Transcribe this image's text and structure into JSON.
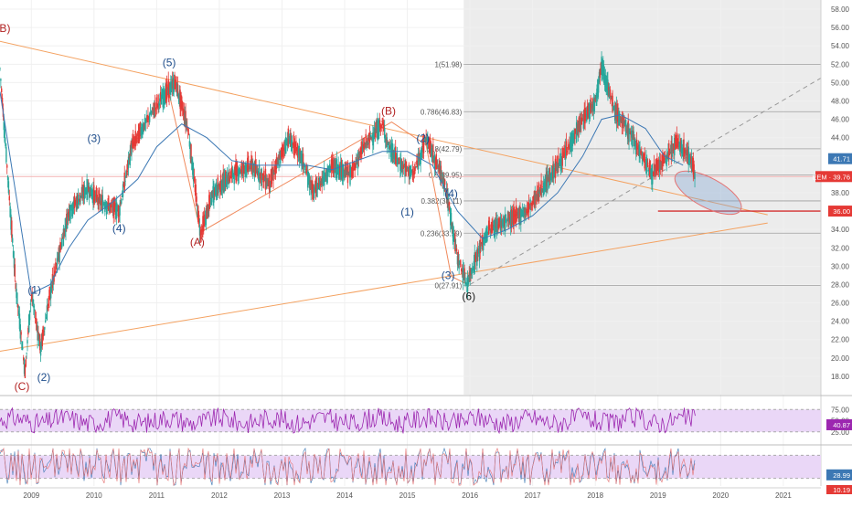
{
  "chart_data": [
    {
      "type": "line",
      "series": [
        {
          "name": "",
          "kind": "candles",
          "x": [
            2008.5,
            2008.75,
            2008.9,
            2009.0,
            2009.15,
            2009.3,
            2009.6,
            2009.9,
            2010.1,
            2010.4,
            2010.6,
            2010.9,
            2011.1,
            2011.3,
            2011.5,
            2011.7,
            2011.9,
            2012.2,
            2012.5,
            2012.8,
            2013.1,
            2013.3,
            2013.5,
            2013.8,
            2014.1,
            2014.3,
            2014.6,
            2014.7,
            2014.9,
            2015.1,
            2015.3,
            2015.6,
            2015.8,
            2015.95,
            2016.1,
            2016.3,
            2016.6,
            2016.9,
            2017.2,
            2017.5,
            2017.8,
            2018.0,
            2018.1,
            2018.3,
            2018.6,
            2018.9,
            2019.1,
            2019.3,
            2019.5,
            2019.6
          ],
          "y": [
            51.5,
            28,
            18.5,
            27,
            21,
            27,
            36,
            38.5,
            37,
            36,
            43,
            46.5,
            48.5,
            50,
            45,
            33.5,
            38,
            40,
            41,
            39,
            44,
            42,
            38,
            41,
            40,
            43,
            45.5,
            43,
            41,
            40,
            44,
            39,
            31,
            28,
            31,
            34,
            35,
            36,
            39,
            42,
            46,
            48,
            52,
            47,
            44,
            40,
            41.5,
            43.5,
            42,
            39.8
          ]
        },
        {
          "name": "",
          "kind": "moving-average",
          "x": [
            2008.5,
            2008.75,
            2009.0,
            2009.3,
            2009.6,
            2009.9,
            2010.3,
            2010.7,
            2011.0,
            2011.4,
            2011.8,
            2012.2,
            2012.6,
            2013.0,
            2013.4,
            2013.8,
            2014.2,
            2014.6,
            2015.0,
            2015.4,
            2015.8,
            2016.2,
            2016.6,
            2017.0,
            2017.4,
            2017.8,
            2018.1,
            2018.4,
            2018.8,
            2019.1,
            2019.4
          ],
          "y": [
            49,
            38,
            27,
            28,
            32,
            35,
            37,
            39.5,
            43,
            45.5,
            44,
            41.5,
            41,
            41,
            41,
            40.5,
            41.5,
            42.5,
            42.5,
            41,
            36,
            33,
            34,
            35.5,
            38,
            42,
            46,
            46.5,
            45,
            42,
            41
          ]
        }
      ],
      "ylim": [
        16,
        59
      ],
      "xlim": [
        2008.5,
        2021.6
      ],
      "y_ticks": [
        "58.00",
        "56.00",
        "54.00",
        "52.00",
        "50.00",
        "48.00",
        "46.00",
        "44.00",
        "42.00",
        "40.00",
        "38.00",
        "36.00",
        "34.00",
        "32.00",
        "30.00",
        "28.00",
        "26.00",
        "24.00",
        "22.00",
        "20.00",
        "18.00"
      ],
      "x_ticks": [
        "2009",
        "2010",
        "2011",
        "2012",
        "2013",
        "2014",
        "2015",
        "2016",
        "2017",
        "2018",
        "2019",
        "2020",
        "2021"
      ],
      "grid": true,
      "shaded_range": {
        "x_from": 2015.9,
        "x_to": 2021.6
      },
      "fibonacci": [
        {
          "label": "1(51.98)",
          "value": 51.98
        },
        {
          "label": "0.786(46.83)",
          "value": 46.83
        },
        {
          "label": "0.618(42.79)",
          "value": 42.79
        },
        {
          "label": "0.5(39.95)",
          "value": 39.95
        },
        {
          "label": "0.382(37.11)",
          "value": 37.11
        },
        {
          "label": "0.236(33.59)",
          "value": 33.59
        },
        {
          "label": "0(27.91)",
          "value": 27.91
        }
      ],
      "wave_labels": [
        {
          "text": "(B)",
          "x": 2008.55,
          "y": 55.5,
          "color": "#b22222"
        },
        {
          "text": "(C)",
          "x": 2008.85,
          "y": 16.5,
          "color": "#b22222"
        },
        {
          "text": "(1)",
          "x": 2009.05,
          "y": 27,
          "color": "#1f4e8c"
        },
        {
          "text": "(2)",
          "x": 2009.2,
          "y": 17.5,
          "color": "#1f4e8c"
        },
        {
          "text": "(3)",
          "x": 2010.0,
          "y": 43.5,
          "color": "#1f4e8c"
        },
        {
          "text": "(4)",
          "x": 2010.4,
          "y": 33.7,
          "color": "#1f4e8c"
        },
        {
          "text": "(5)",
          "x": 2011.2,
          "y": 51.8,
          "color": "#1f4e8c"
        },
        {
          "text": "(A)",
          "x": 2011.65,
          "y": 32.2,
          "color": "#b22222"
        },
        {
          "text": "(B)",
          "x": 2014.7,
          "y": 46.5,
          "color": "#b22222"
        },
        {
          "text": "(2)",
          "x": 2015.25,
          "y": 43.5,
          "color": "#1f4e8c"
        },
        {
          "text": "(1)",
          "x": 2015.0,
          "y": 35.5,
          "color": "#1f4e8c"
        },
        {
          "text": "(4)",
          "x": 2015.7,
          "y": 37.5,
          "color": "#1f4e8c"
        },
        {
          "text": "(3)",
          "x": 2015.65,
          "y": 28.6,
          "color": "#1f4e8c"
        },
        {
          "text": "(6)",
          "x": 2015.98,
          "y": 26.3,
          "color": "#222222"
        }
      ],
      "trendlines": [
        {
          "kind": "upper-orange",
          "from": [
            2008.3,
            54.8
          ],
          "to": [
            2020.75,
            35.6
          ],
          "color": "#f4a261"
        },
        {
          "kind": "lower-orange",
          "from": [
            2008.3,
            20.5
          ],
          "to": [
            2020.75,
            34.7
          ],
          "color": "#f4a261"
        },
        {
          "kind": "dashed-gray",
          "from": [
            2016.0,
            28.0
          ],
          "to": [
            2021.6,
            50.5
          ],
          "color": "#999999"
        },
        {
          "kind": "red-level",
          "from": [
            2019.0,
            36.0
          ],
          "to": [
            2021.6,
            36.0
          ],
          "color": "#d32f2f"
        }
      ],
      "zigzag": [
        [
          2011.15,
          50.3
        ],
        [
          2011.7,
          33.7
        ],
        [
          2014.75,
          45.7
        ],
        [
          2015.3,
          43.2
        ],
        [
          2015.7,
          28.9
        ],
        [
          2015.99,
          27.9
        ]
      ],
      "price_tags": [
        {
          "label": "41.71",
          "value": 41.71,
          "color": "#3c78b4"
        },
        {
          "label": "EEM · 39.76",
          "value": 39.76,
          "color": "#e53935"
        },
        {
          "label": "36.00",
          "value": 36.0,
          "color": "#e53935"
        }
      ],
      "ellipse_region": {
        "x_from": 2019.3,
        "x_to": 2020.3,
        "y_from": 36,
        "y_to": 40
      }
    },
    {
      "type": "line",
      "series": [
        {
          "name": "",
          "kind": "rsi-oscillator",
          "ylim": [
            0,
            100
          ]
        }
      ],
      "band": [
        25,
        75
      ],
      "y_ticks": [
        "75.00",
        "50.00",
        "25.00"
      ],
      "current_tag": "40.87"
    },
    {
      "type": "line",
      "series": [
        {
          "name": "",
          "kind": "stochastic-oscillator",
          "ylim": [
            0,
            100
          ]
        }
      ],
      "band": [
        20,
        80
      ],
      "current_tag": "28.99",
      "bottom_tag": "10.19"
    }
  ],
  "colors": {
    "candle_up": "#26a69a",
    "candle_down": "#e53935",
    "ma": "#3c78b4",
    "rsi": "#9c27b0",
    "band_fill": "#ead7f7"
  }
}
